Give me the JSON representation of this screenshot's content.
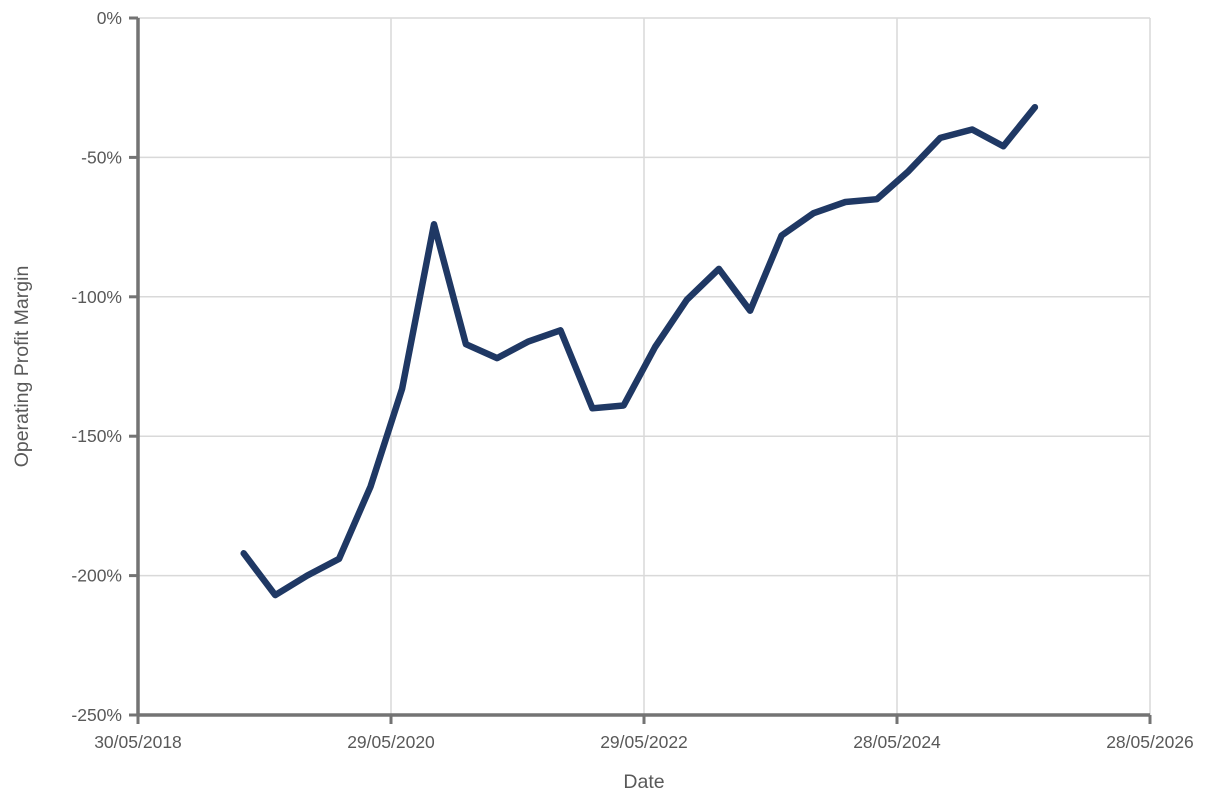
{
  "chart_data": {
    "type": "line",
    "title": "",
    "xlabel": "Date",
    "ylabel": "Operating Profit Margin",
    "x": [
      "31/03/2019",
      "30/06/2019",
      "30/09/2019",
      "31/12/2019",
      "31/03/2020",
      "30/06/2020",
      "30/09/2020",
      "31/12/2020",
      "31/03/2021",
      "30/06/2021",
      "30/09/2021",
      "31/12/2021",
      "31/03/2022",
      "30/06/2022",
      "30/09/2022",
      "31/12/2022",
      "31/03/2023",
      "30/06/2023",
      "30/09/2023",
      "31/12/2023",
      "31/03/2024",
      "30/06/2024",
      "30/09/2024",
      "31/12/2024",
      "31/03/2025",
      "30/06/2025"
    ],
    "values": [
      -192,
      -207,
      -200,
      -194,
      -168,
      -133,
      -74,
      -117,
      -122,
      -116,
      -112,
      -140,
      -139,
      -118,
      -101,
      -90,
      -105,
      -78,
      -70,
      -66,
      -65,
      -55,
      -43,
      -40,
      -46,
      -32
    ],
    "xlim": [
      "30/05/2018",
      "28/05/2026"
    ],
    "ylim": [
      -250,
      0
    ],
    "xticks": {
      "labels": [
        "30/05/2018",
        "29/05/2020",
        "29/05/2022",
        "28/05/2024",
        "28/05/2026"
      ]
    },
    "yticks": {
      "values": [
        0,
        -50,
        -100,
        -150,
        -200,
        -250
      ],
      "labels": [
        "0%",
        "-50%",
        "-100%",
        "-150%",
        "-200%",
        "-250%"
      ]
    },
    "grid": true,
    "legend": "none",
    "colors": {
      "line": "#1F3864",
      "gridline": "#D9D9D9",
      "axis": "#737373",
      "text": "#595959",
      "background": "#FFFFFF"
    }
  }
}
